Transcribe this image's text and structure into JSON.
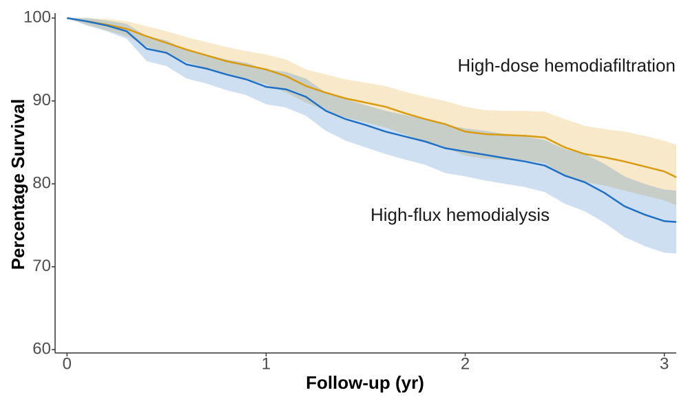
{
  "chart_data": {
    "type": "survival",
    "x_label": "Follow-up (yr)",
    "y_label": "Percentage Survival",
    "xlim": [
      -0.06,
      3.06
    ],
    "ylim": [
      59.6,
      100.6
    ],
    "xticks": [
      0,
      1,
      2,
      3
    ],
    "yticks": [
      60,
      70,
      80,
      90,
      100
    ],
    "x": [
      0,
      0.1,
      0.2,
      0.3,
      0.4,
      0.5,
      0.6,
      0.7,
      0.8,
      0.9,
      1.0,
      1.1,
      1.2,
      1.3,
      1.4,
      1.5,
      1.6,
      1.7,
      1.8,
      1.9,
      2.0,
      2.1,
      2.2,
      2.3,
      2.4,
      2.5,
      2.6,
      2.7,
      2.8,
      2.9,
      3.0,
      3.06
    ],
    "series": [
      {
        "name": "High-dose hemodiafiltration",
        "color": "#d99a0e",
        "values": [
          100,
          99.6,
          99.2,
          98.7,
          97.8,
          97,
          96.2,
          95.5,
          94.8,
          94.3,
          93.8,
          93,
          91.8,
          91,
          90.3,
          89.8,
          89.3,
          88.5,
          87.8,
          87.2,
          86.3,
          86,
          85.9,
          85.8,
          85.6,
          84.4,
          83.6,
          83.2,
          82.7,
          82.1,
          81.5,
          80.8
        ],
        "upper": [
          100,
          100,
          99.9,
          99.6,
          99,
          98.4,
          97.7,
          97.1,
          96.5,
          96,
          95.6,
          95,
          93.8,
          93.2,
          92.6,
          92.2,
          91.8,
          91.1,
          90.5,
          90,
          89.3,
          88.9,
          88.8,
          88.8,
          88.7,
          87.8,
          87,
          86.6,
          86.3,
          85.8,
          85.2,
          84.7
        ],
        "lower": [
          100,
          99.2,
          98.5,
          97.8,
          96.6,
          95.6,
          94.7,
          93.9,
          93.1,
          92.6,
          92,
          91,
          89.8,
          88.8,
          88,
          87.4,
          86.8,
          85.9,
          85.1,
          84.4,
          83.4,
          83,
          82.9,
          82.8,
          82.5,
          81,
          80.2,
          79.8,
          79.2,
          78.6,
          78,
          77.4
        ]
      },
      {
        "name": "High-flux hemodialysis",
        "color": "#1f6fc5",
        "values": [
          100,
          99.6,
          99.1,
          98.4,
          96.3,
          95.8,
          94.4,
          93.9,
          93.2,
          92.6,
          91.7,
          91.4,
          90.5,
          88.8,
          87.8,
          87.1,
          86.3,
          85.7,
          85.1,
          84.3,
          83.9,
          83.5,
          83.1,
          82.7,
          82.2,
          81,
          80.2,
          78.9,
          77.3,
          76.3,
          75.5,
          75.4
        ],
        "upper": [
          100,
          100,
          99.7,
          99.3,
          97.8,
          97.3,
          96.1,
          95.6,
          95,
          94.6,
          93.8,
          93.5,
          92.7,
          91,
          90.2,
          89.5,
          88.8,
          88.3,
          87.8,
          87.1,
          86.7,
          86.4,
          86,
          85.7,
          85.3,
          84.2,
          83.6,
          82.4,
          80.9,
          80,
          79.3,
          79.2
        ],
        "lower": [
          100,
          99.1,
          98.4,
          97.5,
          94.8,
          94.2,
          92.7,
          92.1,
          91.3,
          90.7,
          89.6,
          89.2,
          88.2,
          86.4,
          85.2,
          84.4,
          83.6,
          82.9,
          82.3,
          81.3,
          80.9,
          80.4,
          80,
          79.6,
          79,
          77.6,
          76.7,
          75.3,
          73.6,
          72.5,
          71.7,
          71.6
        ]
      }
    ]
  }
}
